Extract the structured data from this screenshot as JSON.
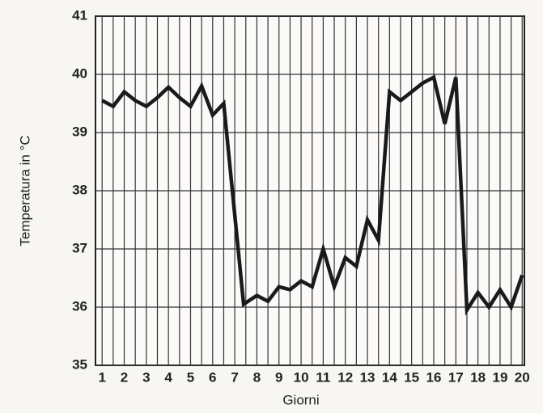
{
  "chart_data": {
    "type": "line",
    "x_label": "Giorni",
    "y_label": "Temperatura in °C",
    "x": [
      1,
      1.5,
      2,
      2.5,
      3,
      3.5,
      4,
      4.5,
      5,
      5.5,
      6,
      6.5,
      7.4,
      8,
      8.5,
      9,
      9.5,
      10,
      10.5,
      11,
      11.5,
      12,
      12.5,
      13,
      13.5,
      14,
      14.5,
      15,
      15.5,
      16,
      16.5,
      17,
      17.5,
      18,
      18.5,
      19,
      19.5,
      20
    ],
    "series": [
      {
        "color": "#1a1a1a",
        "values": [
          39.55,
          39.45,
          39.7,
          39.55,
          39.45,
          39.6,
          39.78,
          39.6,
          39.45,
          39.8,
          39.3,
          39.5,
          36.05,
          36.2,
          36.1,
          36.35,
          36.3,
          36.45,
          36.35,
          37.0,
          36.35,
          36.85,
          36.7,
          37.5,
          37.15,
          39.7,
          39.55,
          39.7,
          39.85,
          39.95,
          39.15,
          39.95,
          35.95,
          36.25,
          36.0,
          36.3,
          36.0,
          36.55
        ]
      }
    ],
    "xlim": [
      0.7,
      20.1
    ],
    "ylim": [
      35,
      41
    ],
    "xticks": [
      1,
      2,
      3,
      4,
      5,
      6,
      7,
      8,
      9,
      10,
      11,
      12,
      13,
      14,
      15,
      16,
      17,
      18,
      19,
      20
    ],
    "yticks": [
      35,
      36,
      37,
      38,
      39,
      40,
      41
    ],
    "grid": true
  }
}
